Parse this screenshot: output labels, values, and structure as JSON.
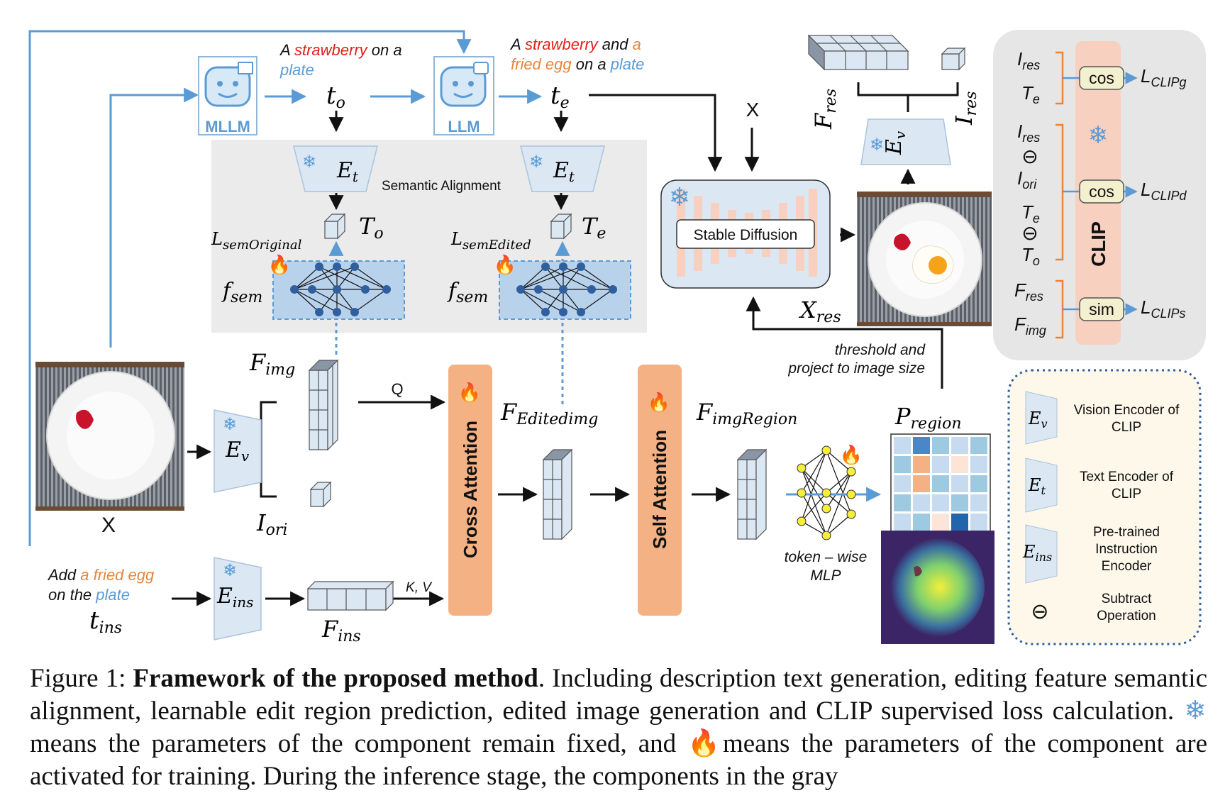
{
  "prompts": {
    "original": {
      "a": "A ",
      "strawberry": "strawberry",
      "on_a": " on a",
      "plate": "plate"
    },
    "edited": {
      "a": "A ",
      "strawberry": "strawberry",
      "and": " and ",
      "a2": "a",
      "fried_egg": "fried egg",
      "on_a": " on a ",
      "plate": "plate"
    },
    "instruction": {
      "add": "Add ",
      "fried_egg": "a fried egg",
      "on_the": "on the ",
      "plate": "plate"
    }
  },
  "models": {
    "mllm": "MLLM",
    "llm": "LLM"
  },
  "labels": {
    "semantic_alignment": "Semantic Alignment",
    "stable_diffusion": "Stable Diffusion",
    "cross_attention": "Cross Attention",
    "self_attention": "Self Attention",
    "q": "Q",
    "kv": "K, V",
    "x_main": "X",
    "x_top": "X",
    "threshold1": "threshold and",
    "threshold2": "project to image size",
    "token_mlp1": "token – wise",
    "token_mlp2": "MLP",
    "cos1": "cos",
    "cos2": "cos",
    "sim": "sim",
    "clip": "CLIP"
  },
  "legend": [
    {
      "symbol": "Ev",
      "text1": "Vision Encoder of",
      "text2": "CLIP"
    },
    {
      "symbol": "Et",
      "text1": "Text Encoder of",
      "text2": "CLIP"
    },
    {
      "symbol": "Eins",
      "text1": "Pre-trained",
      "text2": "Instruction",
      "text3": "Encoder"
    },
    {
      "symbol": "⊖",
      "text1": "Subtract",
      "text2": "Operation"
    }
  ],
  "colors": {
    "blue": "#5b9bd5",
    "red_text": "#e0201b",
    "orange_text": "#e8833a",
    "attention_fill": "#f4b183",
    "gray_panel": "#ebebeb",
    "legend_bg": "#fdf8ea"
  },
  "caption": {
    "prefix": "Figure 1: ",
    "bold": "Framework of the proposed method",
    "part1": ". Including description text generation, editing feature semantic alignment, learnable edit region prediction, edited image generation and CLIP supervised loss calculation. ",
    "part2": " means the parameters of the component remain fixed, and ",
    "part3": " means the parameters of the component are activated for training. During the inference stage, the components in the gray",
    "snow_icon": "snowflake-icon",
    "fire_icon": "fire-icon"
  }
}
